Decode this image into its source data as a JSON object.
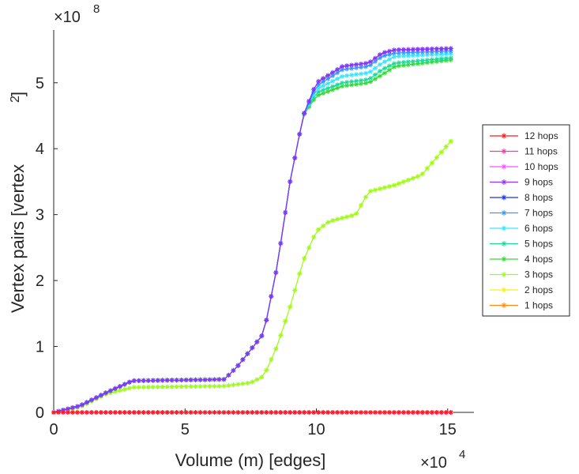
{
  "chart_data": {
    "type": "line",
    "xlabel": "Volume (m) [edges]",
    "ylabel": "Vertex pairs [vertex",
    "ylabel_superscript": "2",
    "ylabel_close": "]",
    "x_exponent_base": "×10",
    "x_exponent_power": "4",
    "y_exponent_base": "×10",
    "y_exponent_power": "8",
    "xlim": [
      0,
      16
    ],
    "ylim": [
      0,
      5.8
    ],
    "xticks": [
      0,
      5,
      10,
      15
    ],
    "xtick_labels": [
      "0",
      "5",
      "10",
      "15"
    ],
    "yticks": [
      0,
      1,
      2,
      3,
      4,
      5
    ],
    "ytick_labels": [
      "0",
      "1",
      "2",
      "3",
      "4",
      "5"
    ],
    "grid": false,
    "legend_position": "right",
    "series": [
      {
        "name": "12 hops",
        "color": "#ff1a1a",
        "key": [
          [
            0,
            0
          ],
          [
            15.2,
            0
          ]
        ]
      },
      {
        "name": "11 hops",
        "color": "#ff33a8",
        "key": [
          [
            0,
            0
          ],
          [
            15.2,
            0
          ]
        ]
      },
      {
        "name": "10 hops",
        "color": "#ff4dff",
        "key": [
          [
            0,
            0
          ],
          [
            15.2,
            0
          ]
        ]
      },
      {
        "name": "9 hops",
        "color": "#8c33ff",
        "key": [
          [
            0,
            0
          ],
          [
            1,
            0.1
          ],
          [
            2,
            0.3
          ],
          [
            3,
            0.48
          ],
          [
            6.5,
            0.5
          ],
          [
            7,
            0.7
          ],
          [
            7.5,
            0.95
          ],
          [
            8,
            1.2
          ],
          [
            8.5,
            2.2
          ],
          [
            9,
            3.5
          ],
          [
            9.5,
            4.5
          ],
          [
            10,
            5.0
          ],
          [
            11,
            5.25
          ],
          [
            12,
            5.3
          ],
          [
            12.5,
            5.45
          ],
          [
            13,
            5.5
          ],
          [
            15.2,
            5.52
          ]
        ]
      },
      {
        "name": "8 hops",
        "color": "#1a33e6",
        "key": [
          [
            0,
            0
          ],
          [
            1,
            0.1
          ],
          [
            2,
            0.3
          ],
          [
            3,
            0.48
          ],
          [
            6.5,
            0.5
          ],
          [
            7,
            0.7
          ],
          [
            7.5,
            0.95
          ],
          [
            8,
            1.2
          ],
          [
            8.5,
            2.2
          ],
          [
            9,
            3.5
          ],
          [
            9.5,
            4.5
          ],
          [
            10,
            5.0
          ],
          [
            11,
            5.25
          ],
          [
            12,
            5.3
          ],
          [
            12.5,
            5.45
          ],
          [
            13,
            5.5
          ],
          [
            15.2,
            5.52
          ]
        ]
      },
      {
        "name": "7 hops",
        "color": "#3399ff",
        "key": [
          [
            0,
            0
          ],
          [
            1,
            0.1
          ],
          [
            2,
            0.3
          ],
          [
            3,
            0.48
          ],
          [
            6.5,
            0.5
          ],
          [
            7,
            0.7
          ],
          [
            7.5,
            0.95
          ],
          [
            8,
            1.2
          ],
          [
            8.5,
            2.2
          ],
          [
            9,
            3.5
          ],
          [
            9.5,
            4.5
          ],
          [
            10,
            4.95
          ],
          [
            11,
            5.2
          ],
          [
            12,
            5.25
          ],
          [
            12.5,
            5.4
          ],
          [
            13,
            5.45
          ],
          [
            15.2,
            5.48
          ]
        ]
      },
      {
        "name": "6 hops",
        "color": "#33e6ff",
        "key": [
          [
            0,
            0
          ],
          [
            1,
            0.1
          ],
          [
            2,
            0.3
          ],
          [
            3,
            0.48
          ],
          [
            6.5,
            0.5
          ],
          [
            7,
            0.7
          ],
          [
            7.5,
            0.95
          ],
          [
            8,
            1.2
          ],
          [
            8.5,
            2.2
          ],
          [
            9,
            3.5
          ],
          [
            9.5,
            4.5
          ],
          [
            10,
            4.9
          ],
          [
            11,
            5.1
          ],
          [
            12,
            5.15
          ],
          [
            12.5,
            5.3
          ],
          [
            13,
            5.4
          ],
          [
            15.2,
            5.44
          ]
        ]
      },
      {
        "name": "5 hops",
        "color": "#1ad999",
        "key": [
          [
            0,
            0
          ],
          [
            1,
            0.1
          ],
          [
            2,
            0.3
          ],
          [
            3,
            0.48
          ],
          [
            6.5,
            0.5
          ],
          [
            7,
            0.7
          ],
          [
            7.5,
            0.95
          ],
          [
            8,
            1.2
          ],
          [
            8.5,
            2.2
          ],
          [
            9,
            3.5
          ],
          [
            9.5,
            4.5
          ],
          [
            10,
            4.85
          ],
          [
            11,
            5.0
          ],
          [
            12,
            5.05
          ],
          [
            12.5,
            5.2
          ],
          [
            13,
            5.3
          ],
          [
            15.2,
            5.38
          ]
        ]
      },
      {
        "name": "4 hops",
        "color": "#33d933",
        "key": [
          [
            0,
            0
          ],
          [
            1,
            0.1
          ],
          [
            2,
            0.3
          ],
          [
            3,
            0.48
          ],
          [
            6.5,
            0.5
          ],
          [
            7,
            0.7
          ],
          [
            7.5,
            0.95
          ],
          [
            8,
            1.2
          ],
          [
            8.5,
            2.2
          ],
          [
            9,
            3.5
          ],
          [
            9.5,
            4.5
          ],
          [
            10,
            4.8
          ],
          [
            11,
            4.95
          ],
          [
            12,
            5.0
          ],
          [
            12.5,
            5.12
          ],
          [
            13,
            5.25
          ],
          [
            15.2,
            5.35
          ]
        ]
      },
      {
        "name": "3 hops",
        "color": "#99ff1a",
        "key": [
          [
            0,
            0
          ],
          [
            1,
            0.08
          ],
          [
            2,
            0.28
          ],
          [
            3,
            0.38
          ],
          [
            6.5,
            0.4
          ],
          [
            7.5,
            0.45
          ],
          [
            8,
            0.55
          ],
          [
            8.5,
            1.0
          ],
          [
            9,
            1.6
          ],
          [
            9.5,
            2.3
          ],
          [
            10,
            2.75
          ],
          [
            10.5,
            2.9
          ],
          [
            11.5,
            3.0
          ],
          [
            12,
            3.35
          ],
          [
            13,
            3.45
          ],
          [
            14,
            3.6
          ],
          [
            15.2,
            4.15
          ]
        ]
      },
      {
        "name": "2 hops",
        "color": "#f2f21a",
        "key": [
          [
            0,
            0
          ],
          [
            1,
            0.08
          ],
          [
            2,
            0.28
          ],
          [
            3,
            0.38
          ],
          [
            6.5,
            0.4
          ],
          [
            7.5,
            0.45
          ],
          [
            8,
            0.55
          ],
          [
            8.5,
            1.0
          ],
          [
            9,
            1.6
          ],
          [
            9.5,
            2.3
          ],
          [
            10,
            2.75
          ],
          [
            10.5,
            2.9
          ],
          [
            11.5,
            3.0
          ],
          [
            12,
            3.35
          ],
          [
            13,
            3.45
          ],
          [
            14,
            3.6
          ],
          [
            15.2,
            4.15
          ]
        ]
      },
      {
        "name": "1 hops",
        "color": "#ff8c1a",
        "key": [
          [
            0,
            0
          ],
          [
            15.2,
            0
          ]
        ]
      }
    ]
  }
}
